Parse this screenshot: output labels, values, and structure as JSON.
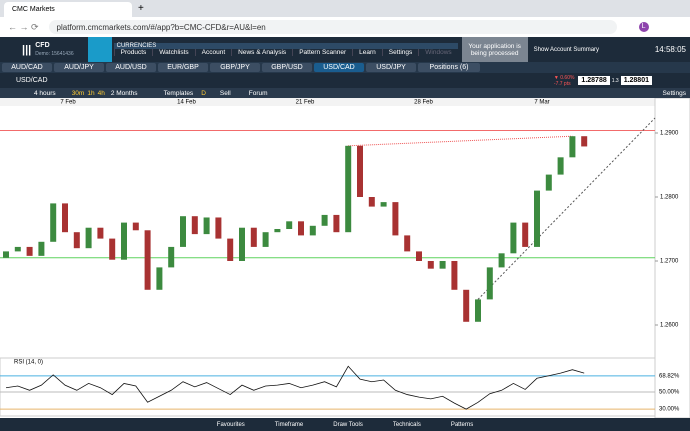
{
  "browser": {
    "tab": "CMC Markets",
    "url": "platform.cmcmarkets.com/#/app?b=CMC-CFD&r=AU&l=en",
    "avatar": "L"
  },
  "header": {
    "logo": "CFD",
    "account": "Demo: 15641436",
    "tab": "CURRENCIES",
    "menu": [
      "Products",
      "Watchlists",
      "Account",
      "News & Analysis",
      "Pattern Scanner",
      "Learn",
      "Settings",
      "Windows"
    ],
    "notice": "Your application is being processed",
    "summary": "Show Account Summary",
    "time": "14:58:05"
  },
  "instruments": [
    "AUD/CAD",
    "AUD/JPY",
    "AUD/USD",
    "EUR/GBP",
    "GBP/JPY",
    "GBP/USD",
    "USD/CAD",
    "USD/JPY",
    "Positions (6)"
  ],
  "active_instrument": 6,
  "chart_header": {
    "symbol": "USD/CAD",
    "change": "▼ 0.60%",
    "change_pts": "-7.7 pts",
    "sell": "1.28788",
    "spread": "1.3",
    "buy": "1.28801"
  },
  "toolbar": {
    "timeframe": "4 hours",
    "intervals": [
      "30m",
      "1h",
      "4h"
    ],
    "range": "2 Months",
    "templates": "Templates",
    "d": "D",
    "sell": "Sell",
    "forum": "Forum",
    "settings": "Settings"
  },
  "footer": [
    "Favourites",
    "Timeframe",
    "Draw Tools",
    "Technicals",
    "Patterns"
  ],
  "chart_data": [
    {
      "type": "candlestick",
      "dates": [
        "7 Feb",
        "14 Feb",
        "21 Feb",
        "28 Feb",
        "7 Mar"
      ],
      "open": [
        1.2705,
        1.2715,
        1.2722,
        1.2708,
        1.273,
        1.279,
        1.2745,
        1.272,
        1.2752,
        1.2735,
        1.2702,
        1.276,
        1.2748,
        1.2655,
        1.269,
        1.2722,
        1.277,
        1.2742,
        1.2768,
        1.2735,
        1.27,
        1.2752,
        1.2722,
        1.2745,
        1.275,
        1.2762,
        1.274,
        1.2755,
        1.2772,
        1.2745,
        1.288,
        1.28,
        1.2785,
        1.2792,
        1.274,
        1.2715,
        1.27,
        1.2688,
        1.27,
        1.2655,
        1.2605,
        1.264,
        1.269,
        1.2712,
        1.276,
        1.2722,
        1.281,
        1.2835,
        1.2862,
        1.2895
      ],
      "close": [
        1.2715,
        1.2722,
        1.2708,
        1.273,
        1.279,
        1.2745,
        1.272,
        1.2752,
        1.2735,
        1.2702,
        1.276,
        1.2748,
        1.2655,
        1.269,
        1.2722,
        1.277,
        1.2742,
        1.2768,
        1.2735,
        1.27,
        1.2752,
        1.2722,
        1.2745,
        1.275,
        1.2762,
        1.274,
        1.2755,
        1.2772,
        1.2745,
        1.288,
        1.28,
        1.2785,
        1.2792,
        1.274,
        1.2715,
        1.27,
        1.2688,
        1.27,
        1.2655,
        1.2605,
        1.264,
        1.269,
        1.2712,
        1.276,
        1.2722,
        1.281,
        1.2835,
        1.2862,
        1.2895,
        1.2879
      ],
      "up_color": "#3c8a3f",
      "down_color": "#a83232",
      "ylim": [
        1.25531,
        1.29422
      ],
      "yticks": [
        {
          "value": 1.29,
          "label": "1.2900"
        },
        {
          "value": 1.28,
          "label": "1.2800"
        },
        {
          "value": 1.27,
          "label": "1.2700"
        },
        {
          "value": 1.26,
          "label": "1.2600"
        }
      ],
      "levels": [
        {
          "value": 1.2904,
          "color": "#f26b6b"
        },
        {
          "value": 1.2705,
          "color": "#5fd35f"
        }
      ]
    },
    {
      "type": "line",
      "title": "RSI (14, 0)",
      "values": [
        55,
        57,
        52,
        58,
        70,
        58,
        52,
        60,
        55,
        47,
        60,
        57,
        38,
        45,
        52,
        62,
        56,
        61,
        54,
        47,
        58,
        52,
        57,
        58,
        60,
        55,
        58,
        62,
        56,
        80,
        65,
        62,
        64,
        52,
        47,
        44,
        42,
        45,
        37,
        30,
        38,
        48,
        52,
        60,
        53,
        66,
        69,
        72,
        76,
        72
      ],
      "color": "#111111",
      "ylim": [
        22,
        85
      ],
      "yticks": [
        {
          "value": 68.82,
          "label": "68.82%"
        },
        {
          "value": 50,
          "label": "50.00%"
        },
        {
          "value": 30,
          "label": "30.00%"
        }
      ]
    }
  ]
}
